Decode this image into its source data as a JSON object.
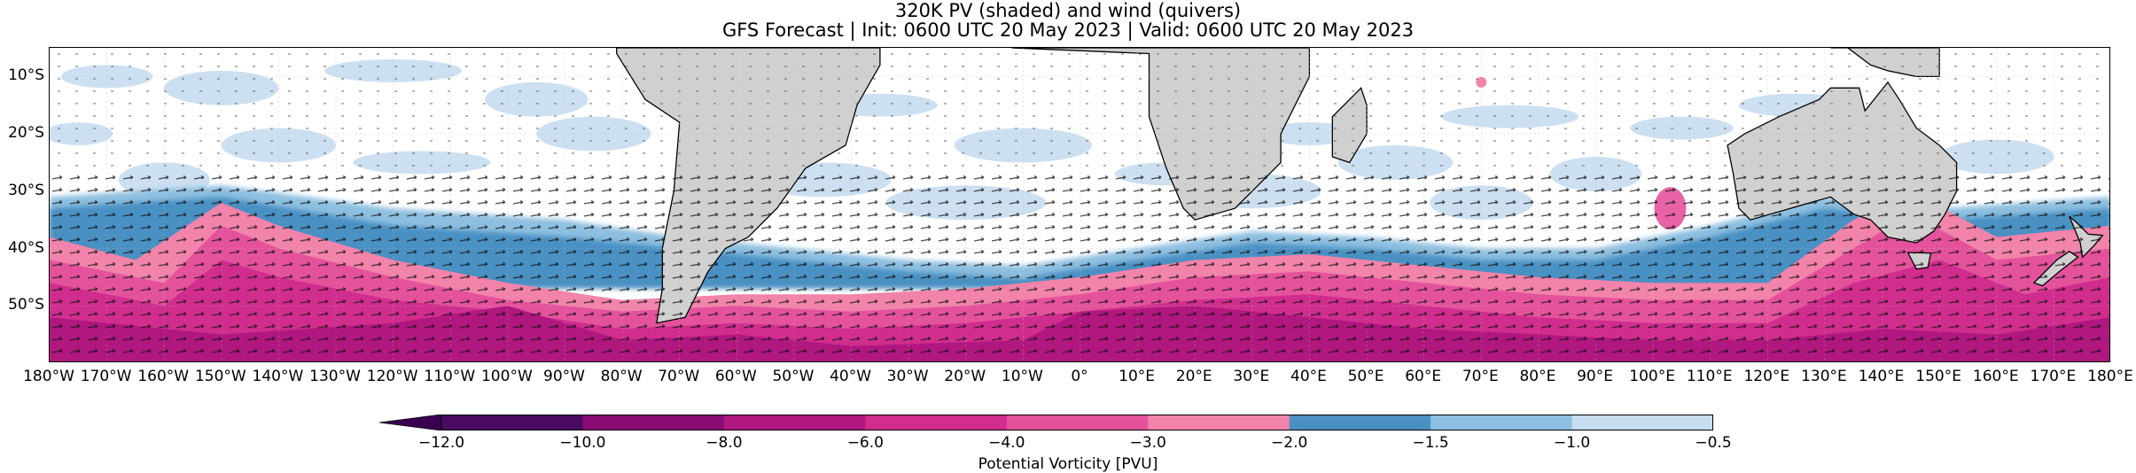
{
  "title": {
    "line1": "320K PV (shaded) and wind (quivers)",
    "line2": "GFS Forecast | Init: 0600 UTC 20 May 2023 | Valid: 0600 UTC 20 May 2023"
  },
  "map": {
    "projection": "PlateCarree",
    "lon_range": [
      -180,
      180
    ],
    "lat_range": [
      -60,
      -5
    ],
    "grid": true,
    "land_color": "#d0d0d0",
    "ocean_color": "#ffffff",
    "lat_ticks": [
      {
        "value": -10,
        "label": "10°S"
      },
      {
        "value": -20,
        "label": "20°S"
      },
      {
        "value": -30,
        "label": "30°S"
      },
      {
        "value": -40,
        "label": "40°S"
      },
      {
        "value": -50,
        "label": "50°S"
      }
    ],
    "lon_ticks": [
      {
        "value": -180,
        "label": "180°W"
      },
      {
        "value": -170,
        "label": "170°W"
      },
      {
        "value": -160,
        "label": "160°W"
      },
      {
        "value": -150,
        "label": "150°W"
      },
      {
        "value": -140,
        "label": "140°W"
      },
      {
        "value": -130,
        "label": "130°W"
      },
      {
        "value": -120,
        "label": "120°W"
      },
      {
        "value": -110,
        "label": "110°W"
      },
      {
        "value": -100,
        "label": "100°W"
      },
      {
        "value": -90,
        "label": "90°W"
      },
      {
        "value": -80,
        "label": "80°W"
      },
      {
        "value": -70,
        "label": "70°W"
      },
      {
        "value": -60,
        "label": "60°W"
      },
      {
        "value": -50,
        "label": "50°W"
      },
      {
        "value": -40,
        "label": "40°W"
      },
      {
        "value": -30,
        "label": "30°W"
      },
      {
        "value": -20,
        "label": "20°W"
      },
      {
        "value": -10,
        "label": "10°W"
      },
      {
        "value": 0,
        "label": "0°"
      },
      {
        "value": 10,
        "label": "10°E"
      },
      {
        "value": 20,
        "label": "20°E"
      },
      {
        "value": 30,
        "label": "30°E"
      },
      {
        "value": 40,
        "label": "40°E"
      },
      {
        "value": 50,
        "label": "50°E"
      },
      {
        "value": 60,
        "label": "60°E"
      },
      {
        "value": 70,
        "label": "70°E"
      },
      {
        "value": 80,
        "label": "80°E"
      },
      {
        "value": 90,
        "label": "90°E"
      },
      {
        "value": 100,
        "label": "100°E"
      },
      {
        "value": 110,
        "label": "110°E"
      },
      {
        "value": 120,
        "label": "120°E"
      },
      {
        "value": 130,
        "label": "130°E"
      },
      {
        "value": 140,
        "label": "140°E"
      },
      {
        "value": 150,
        "label": "150°E"
      },
      {
        "value": 160,
        "label": "160°E"
      },
      {
        "value": 170,
        "label": "170°E"
      },
      {
        "value": 180,
        "label": "180°E"
      }
    ]
  },
  "colorbar": {
    "label": "Potential Vorticity [PVU]",
    "extend": "min",
    "boundaries": [
      -12.0,
      -10.0,
      -8.0,
      -6.0,
      -4.0,
      -3.0,
      -2.0,
      -1.5,
      -1.0,
      -0.5
    ],
    "tick_labels": [
      "−12.0",
      "−10.0",
      "−8.0",
      "−6.0",
      "−4.0",
      "−3.0",
      "−2.0",
      "−1.5",
      "−1.0",
      "−0.5"
    ],
    "colors": [
      "#4a0a62",
      "#880c73",
      "#b0177f",
      "#d02d8e",
      "#e4529c",
      "#f283aa",
      "#4a90c3",
      "#8dbfe0",
      "#c6ddf0"
    ],
    "extend_color": "#3a0050"
  }
}
